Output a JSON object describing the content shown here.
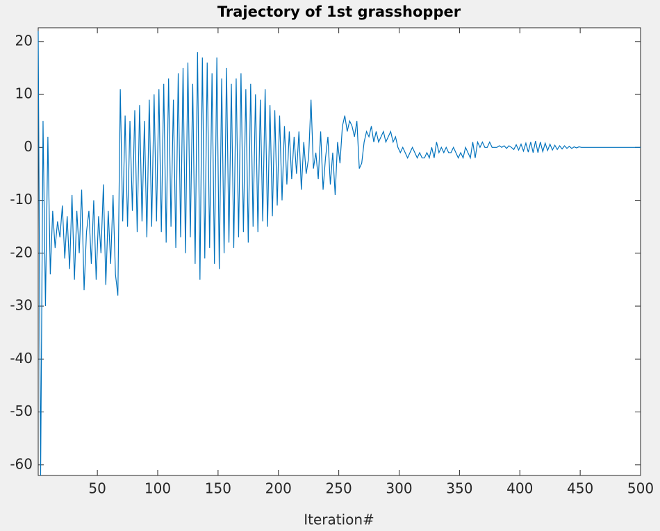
{
  "chart_data": {
    "type": "line",
    "title": "Trajectory of 1st grasshopper",
    "x_label": "Iteration#",
    "xlim": [
      1,
      500
    ],
    "xticks": [
      50,
      100,
      150,
      200,
      250,
      300,
      350,
      400,
      450,
      500
    ],
    "ylim": [
      -62,
      22.6
    ],
    "yticks": [
      -60,
      -50,
      -40,
      -30,
      -20,
      -10,
      0,
      10,
      20
    ],
    "x": [
      1,
      3,
      5,
      7,
      9,
      11,
      13,
      15,
      17,
      19,
      21,
      23,
      25,
      27,
      29,
      31,
      33,
      35,
      37,
      39,
      41,
      43,
      45,
      47,
      49,
      51,
      53,
      55,
      57,
      59,
      61,
      63,
      65,
      67,
      69,
      71,
      73,
      75,
      77,
      79,
      81,
      83,
      85,
      87,
      89,
      91,
      93,
      95,
      97,
      99,
      101,
      103,
      105,
      107,
      109,
      111,
      113,
      115,
      117,
      119,
      121,
      123,
      125,
      127,
      129,
      131,
      133,
      135,
      137,
      139,
      141,
      143,
      145,
      147,
      149,
      151,
      153,
      155,
      157,
      159,
      161,
      163,
      165,
      167,
      169,
      171,
      173,
      175,
      177,
      179,
      181,
      183,
      185,
      187,
      189,
      191,
      193,
      195,
      197,
      199,
      201,
      203,
      205,
      207,
      209,
      211,
      213,
      215,
      217,
      219,
      221,
      223,
      225,
      227,
      229,
      231,
      233,
      235,
      237,
      239,
      241,
      243,
      245,
      247,
      249,
      251,
      253,
      255,
      257,
      259,
      261,
      263,
      265,
      267,
      269,
      271,
      273,
      275,
      277,
      279,
      281,
      283,
      285,
      287,
      289,
      291,
      293,
      295,
      297,
      299,
      301,
      303,
      305,
      307,
      309,
      311,
      313,
      315,
      317,
      319,
      321,
      323,
      325,
      327,
      329,
      331,
      333,
      335,
      337,
      339,
      341,
      343,
      345,
      347,
      349,
      351,
      353,
      355,
      357,
      359,
      361,
      363,
      365,
      367,
      369,
      371,
      373,
      375,
      377,
      379,
      381,
      383,
      385,
      387,
      389,
      391,
      393,
      395,
      397,
      399,
      401,
      403,
      405,
      407,
      409,
      411,
      413,
      415,
      417,
      419,
      421,
      423,
      425,
      427,
      429,
      431,
      433,
      435,
      437,
      439,
      441,
      443,
      445,
      447,
      449,
      451,
      453,
      455,
      457,
      459,
      461,
      463,
      465,
      467,
      469,
      471,
      473,
      475,
      477,
      479,
      481,
      483,
      485,
      487,
      489,
      491,
      493,
      495,
      497,
      499,
      500
    ],
    "series": [
      {
        "color": "#0072bd",
        "values": [
          22,
          -62,
          5,
          -30,
          2,
          -24,
          -12,
          -19,
          -14,
          -17,
          -11,
          -21,
          -13,
          -23,
          -9,
          -25,
          -12,
          -20,
          -8,
          -27,
          -16,
          -12,
          -22,
          -10,
          -25,
          -13,
          -20,
          -7,
          -26,
          -12,
          -22,
          -9,
          -24,
          -28,
          11,
          -14,
          6,
          -15,
          5,
          -12,
          7,
          -16,
          8,
          -14,
          5,
          -17,
          9,
          -15,
          10,
          -14,
          11,
          -16,
          12,
          -18,
          13,
          -15,
          9,
          -19,
          14,
          -17,
          15,
          -20,
          16,
          -17,
          12,
          -22,
          18,
          -25,
          17,
          -21,
          16,
          -19,
          14,
          -22,
          17,
          -23,
          13,
          -20,
          15,
          -18,
          12,
          -19,
          13,
          -17,
          14,
          -16,
          11,
          -18,
          12,
          -15,
          10,
          -16,
          9,
          -14,
          11,
          -15,
          8,
          -13,
          7,
          -11,
          6,
          -10,
          4,
          -7,
          3,
          -6,
          2,
          -5,
          3,
          -8,
          1,
          -5,
          -2,
          9,
          -4,
          -1,
          -6,
          3,
          -8,
          -2,
          2,
          -7,
          -1,
          -9,
          1,
          -3,
          4,
          6,
          3,
          5,
          4,
          2,
          5,
          -4,
          -3,
          1,
          3,
          2,
          4,
          1,
          3,
          1,
          2,
          3,
          1,
          2,
          3,
          1,
          2,
          0,
          -1,
          0,
          -1,
          -2,
          -1,
          0,
          -1,
          -2,
          -1,
          -2,
          -2,
          -1,
          -2,
          0,
          -2,
          1,
          -1,
          0,
          -1,
          0,
          -1,
          -1,
          0,
          -1,
          -2,
          -1,
          -2,
          0,
          -1,
          -2,
          1,
          -2,
          1,
          0,
          1,
          0,
          0,
          1,
          0,
          0,
          0,
          0.3,
          0,
          0.3,
          -0.2,
          0.3,
          0,
          -0.4,
          0.5,
          -0.5,
          0.6,
          -0.7,
          0.8,
          -0.9,
          1,
          -1,
          1.2,
          -1,
          1,
          -0.8,
          0.8,
          -0.6,
          0.6,
          -0.5,
          0.4,
          -0.4,
          0.3,
          -0.3,
          0.3,
          -0.2,
          0.2,
          -0.2,
          0.1,
          -0.1,
          0.1,
          0,
          0,
          0,
          0,
          0,
          0,
          0,
          0,
          0,
          0,
          0,
          0,
          0,
          0,
          0,
          0,
          0,
          0,
          0,
          0,
          0,
          0,
          0,
          0,
          0,
          0
        ]
      }
    ]
  }
}
